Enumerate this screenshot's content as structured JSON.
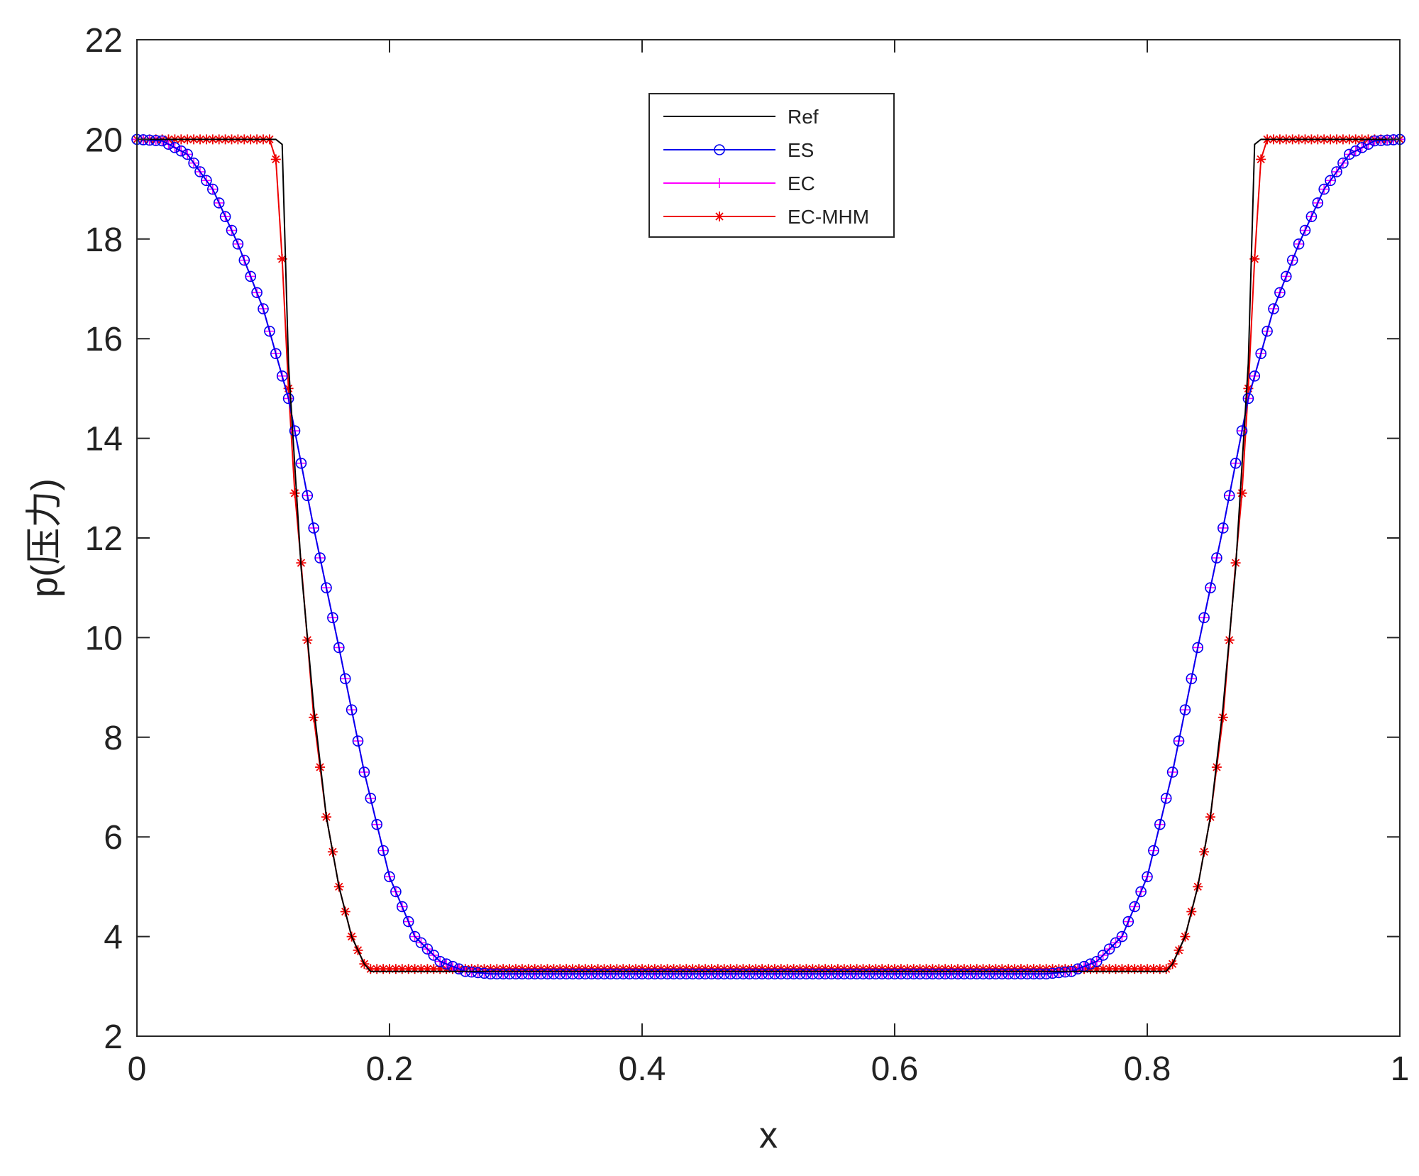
{
  "chart_data": {
    "type": "line",
    "title": "",
    "xlabel": "x",
    "ylabel": "p(压力)",
    "xlim": [
      0,
      1
    ],
    "ylim": [
      2,
      22
    ],
    "xticks": [
      0,
      0.2,
      0.4,
      0.6,
      0.8,
      1
    ],
    "xtick_labels": [
      "0",
      "0.2",
      "0.4",
      "0.6",
      "0.8",
      "1"
    ],
    "yticks": [
      2,
      4,
      6,
      8,
      10,
      12,
      14,
      16,
      18,
      20,
      22
    ],
    "ytick_labels": [
      "2",
      "4",
      "6",
      "8",
      "10",
      "12",
      "14",
      "16",
      "18",
      "20",
      "22"
    ],
    "grid": false,
    "legend_position": "top-center",
    "series": [
      {
        "name": "Ref",
        "color": "#000000",
        "marker": "none",
        "x": [
          0,
          0.11,
          0.115,
          0.12,
          0.13,
          0.14,
          0.15,
          0.16,
          0.17,
          0.18,
          0.185,
          0.815,
          0.82,
          0.83,
          0.84,
          0.85,
          0.86,
          0.87,
          0.88,
          0.885,
          0.89,
          1
        ],
        "y": [
          20,
          20,
          19.9,
          15.5,
          11.4,
          8.6,
          6.4,
          5.0,
          4.0,
          3.45,
          3.3,
          3.3,
          3.45,
          4.0,
          5.0,
          6.4,
          8.6,
          11.4,
          15.5,
          19.9,
          20,
          20
        ]
      },
      {
        "name": "ES",
        "color": "#0000ee",
        "marker": "circle",
        "x": [
          0,
          0.02,
          0.04,
          0.06,
          0.08,
          0.1,
          0.12,
          0.14,
          0.16,
          0.18,
          0.2,
          0.22,
          0.24,
          0.26,
          0.28,
          0.3,
          0.5,
          0.7,
          0.72,
          0.74,
          0.76,
          0.78,
          0.8,
          0.82,
          0.84,
          0.86,
          0.88,
          0.9,
          0.92,
          0.94,
          0.96,
          0.98,
          1
        ],
        "y": [
          20,
          19.97,
          19.7,
          19.0,
          17.9,
          16.6,
          14.8,
          12.2,
          9.8,
          7.3,
          5.2,
          4.0,
          3.5,
          3.3,
          3.25,
          3.25,
          3.25,
          3.25,
          3.25,
          3.3,
          3.5,
          4.0,
          5.2,
          7.3,
          9.8,
          12.2,
          14.8,
          16.6,
          17.9,
          19.0,
          19.7,
          19.97,
          20
        ]
      },
      {
        "name": "EC",
        "color": "#ff00ff",
        "marker": "plus",
        "x": [
          0,
          0.02,
          0.04,
          0.06,
          0.08,
          0.1,
          0.12,
          0.14,
          0.16,
          0.18,
          0.2,
          0.22,
          0.24,
          0.26,
          0.28,
          0.3,
          0.5,
          0.7,
          0.72,
          0.74,
          0.76,
          0.78,
          0.8,
          0.82,
          0.84,
          0.86,
          0.88,
          0.9,
          0.92,
          0.94,
          0.96,
          0.98,
          1
        ],
        "y": [
          20,
          19.97,
          19.7,
          19.0,
          17.9,
          16.6,
          14.8,
          12.2,
          9.8,
          7.3,
          5.2,
          4.0,
          3.5,
          3.3,
          3.25,
          3.25,
          3.25,
          3.25,
          3.25,
          3.3,
          3.5,
          4.0,
          5.2,
          7.3,
          9.8,
          12.2,
          14.8,
          16.6,
          17.9,
          19.0,
          19.7,
          19.97,
          20
        ]
      },
      {
        "name": "EC-MHM",
        "color": "#ee0000",
        "marker": "asterisk",
        "x": [
          0,
          0.105,
          0.11,
          0.115,
          0.12,
          0.125,
          0.13,
          0.14,
          0.15,
          0.16,
          0.17,
          0.18,
          0.185,
          0.815,
          0.82,
          0.83,
          0.84,
          0.85,
          0.86,
          0.87,
          0.875,
          0.88,
          0.885,
          0.89,
          0.895,
          1
        ],
        "y": [
          20,
          20,
          19.6,
          17.6,
          15.0,
          12.9,
          11.5,
          8.4,
          6.4,
          5.0,
          4.0,
          3.45,
          3.35,
          3.35,
          3.45,
          4.0,
          5.0,
          6.4,
          8.4,
          11.5,
          12.9,
          15.0,
          17.6,
          19.6,
          20,
          20
        ]
      }
    ]
  }
}
